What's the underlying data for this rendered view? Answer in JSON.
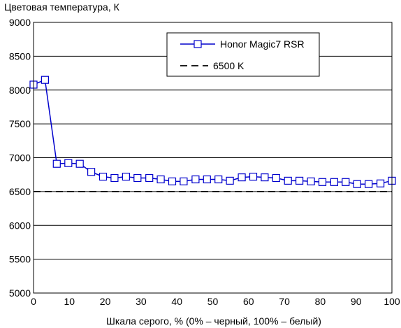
{
  "chart_data": {
    "type": "line",
    "title": "",
    "ylabel": "Цветовая температура, К",
    "xlabel": "Шкала серого, % (0% – черный, 100% – белый)",
    "xlim": [
      0,
      100
    ],
    "ylim": [
      5000,
      9000
    ],
    "xticks": [
      0,
      10,
      20,
      30,
      40,
      50,
      60,
      70,
      80,
      90,
      100
    ],
    "yticks": [
      5000,
      5500,
      6000,
      6500,
      7000,
      7500,
      8000,
      8500,
      9000
    ],
    "xtick_labels": [
      "0",
      "10",
      "20",
      "30",
      "40",
      "50",
      "60",
      "70",
      "80",
      "90",
      "100"
    ],
    "ytick_labels": [
      "5000",
      "5500",
      "6000",
      "6500",
      "7000",
      "7500",
      "8000",
      "8500",
      "9000"
    ],
    "grid": "horizontal",
    "legend_position": "top-right",
    "series": [
      {
        "name": "Honor Magic7 RSR",
        "color": "#0000cc",
        "marker": "open-square",
        "x": [
          0,
          3.2,
          6.5,
          9.7,
          12.9,
          16.1,
          19.4,
          22.6,
          25.8,
          29.0,
          32.3,
          35.5,
          38.7,
          41.9,
          45.2,
          48.4,
          51.6,
          54.8,
          58.1,
          61.3,
          64.5,
          67.7,
          71.0,
          74.2,
          77.4,
          80.6,
          83.9,
          87.1,
          90.3,
          93.5,
          96.8,
          100
        ],
        "y": [
          8080,
          8150,
          6910,
          6920,
          6910,
          6790,
          6720,
          6700,
          6720,
          6700,
          6700,
          6680,
          6650,
          6650,
          6680,
          6680,
          6680,
          6660,
          6710,
          6720,
          6710,
          6700,
          6660,
          6660,
          6650,
          6640,
          6640,
          6640,
          6610,
          6610,
          6620,
          6660
        ]
      },
      {
        "name": "6500 K",
        "color": "#000000",
        "style": "dashed",
        "x": [
          0,
          100
        ],
        "y": [
          6500,
          6500
        ]
      }
    ]
  }
}
